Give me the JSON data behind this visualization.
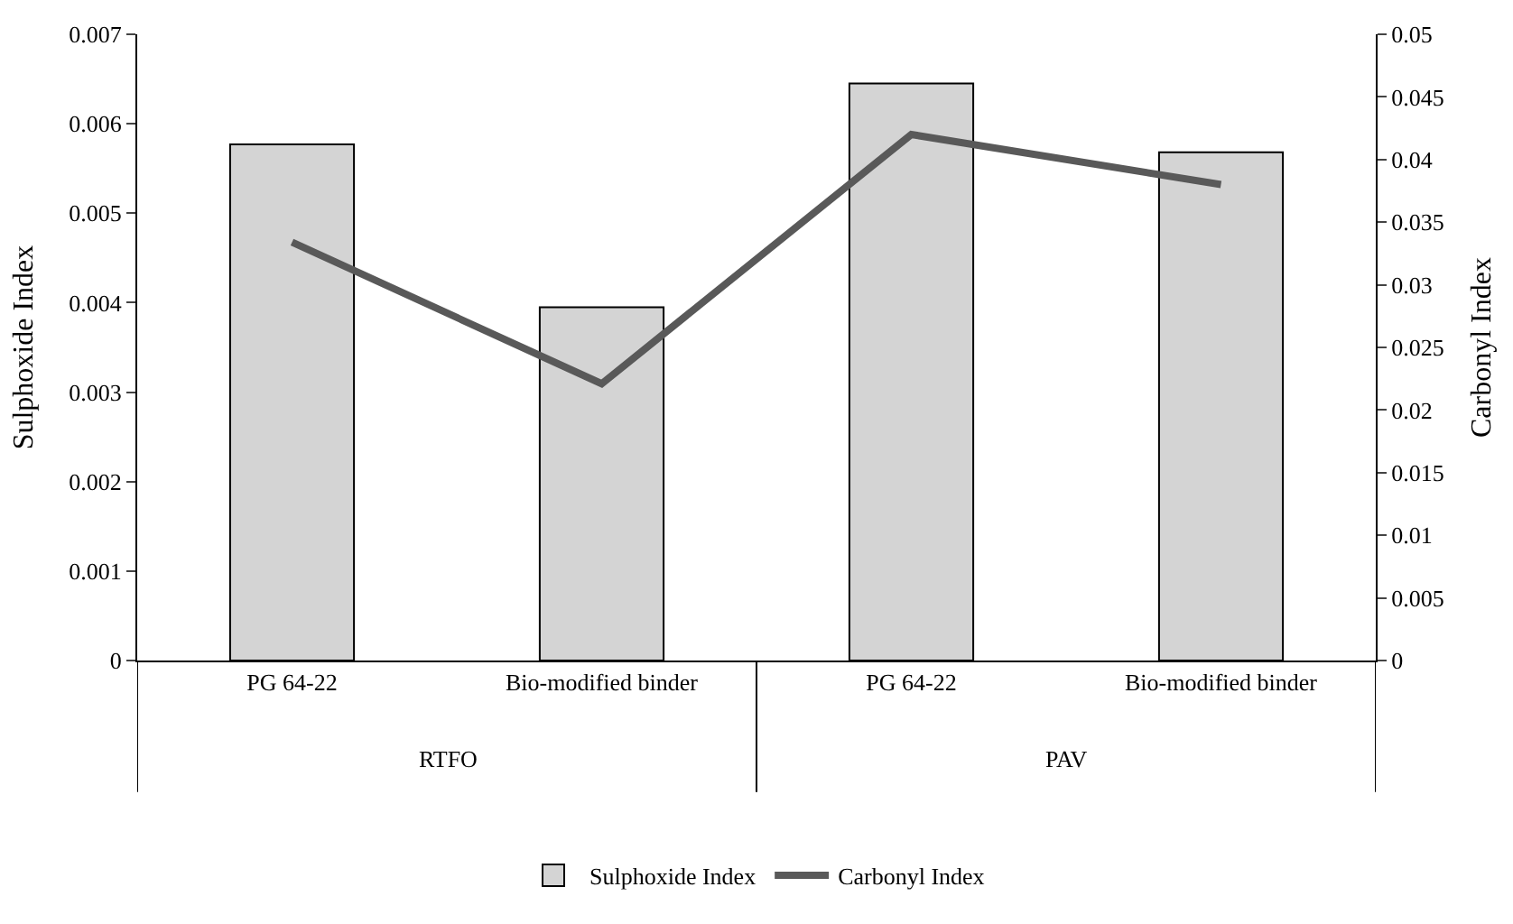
{
  "chart_data": {
    "type": "line",
    "categories": [
      "PG 64-22",
      "Bio-modified binder",
      "PG 64-22",
      "Bio-modified binder"
    ],
    "series": [
      {
        "name": "Sulphoxide Index",
        "type": "bar",
        "color": "#d4d4d4",
        "values": [
          0.00577,
          0.00395,
          0.00645,
          0.00568
        ]
      },
      {
        "name": "Carbonyl Index",
        "axis": "y2",
        "color": "#595959",
        "values": [
          0.0334,
          0.0221,
          0.042,
          0.038
        ]
      }
    ],
    "ylabel": "Sulphoxide Index",
    "y2label": "Carbonyl Index",
    "ylim": [
      0,
      0.007
    ],
    "yticks": [
      0,
      0.001,
      0.002,
      0.003,
      0.004,
      0.005,
      0.006,
      0.007
    ],
    "y2lim": [
      0,
      0.05
    ],
    "y2ticks": [
      0,
      0.005,
      0.01,
      0.015,
      0.02,
      0.025,
      0.03,
      0.035,
      0.04,
      0.045,
      0.05
    ],
    "annotations": [
      "RTFO",
      "PAV"
    ],
    "legend": "bottom",
    "marker": "none",
    "line_style": "solid"
  }
}
